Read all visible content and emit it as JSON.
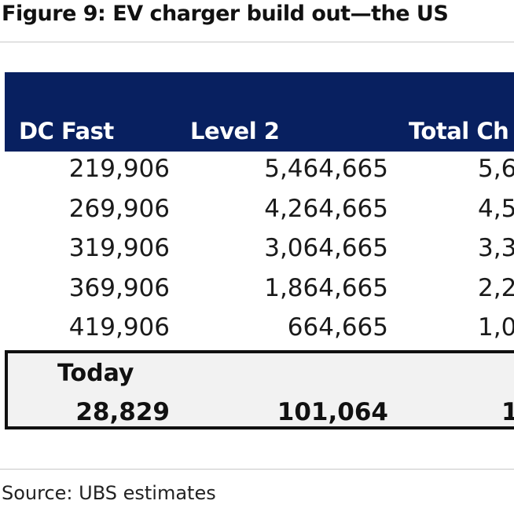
{
  "title": "Figure 9: EV charger build out—the US",
  "table": {
    "columns": [
      "DC Fast",
      "Level 2",
      "Total Ch"
    ],
    "rows": [
      [
        "219,906",
        "5,464,665",
        "5,6"
      ],
      [
        "269,906",
        "4,264,665",
        "4,5"
      ],
      [
        "319,906",
        "3,064,665",
        "3,3"
      ],
      [
        "369,906",
        "1,864,665",
        "2,2"
      ],
      [
        "419,906",
        "664,665",
        "1,0"
      ]
    ],
    "today": {
      "label": "Today",
      "values": [
        "28,829",
        "101,064",
        "1"
      ]
    }
  },
  "source": "Source: UBS estimates"
}
